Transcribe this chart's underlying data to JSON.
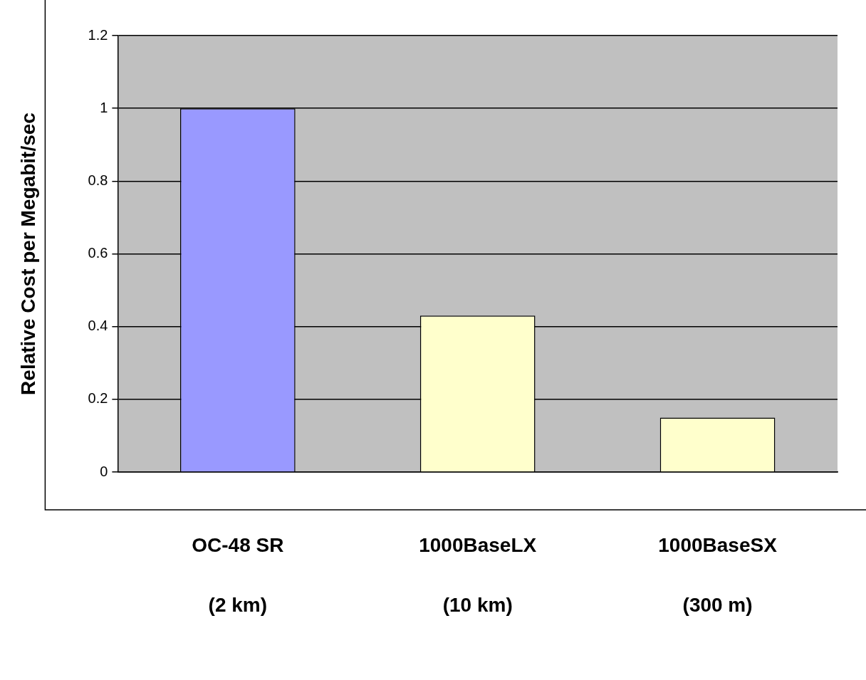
{
  "chart_data": {
    "type": "bar",
    "ylabel": "Relative Cost per Megabit/sec",
    "categories": [
      "OC-48 SR\n(2 km)",
      "1000BaseLX\n(10 km)",
      "1000BaseSX\n(300 m)"
    ],
    "values": [
      1,
      0.43,
      0.15
    ],
    "colors": [
      "#9999ff",
      "#ffffcc",
      "#ffffcc"
    ],
    "ylim": [
      0,
      1.2
    ],
    "yticks": [
      0,
      0.2,
      0.4,
      0.6,
      0.8,
      1,
      1.2
    ],
    "grid": "y",
    "legend": false
  }
}
